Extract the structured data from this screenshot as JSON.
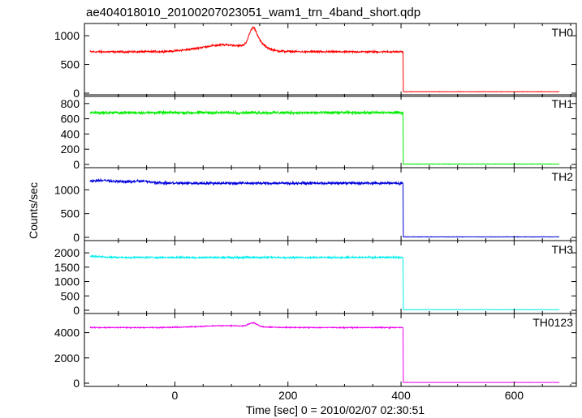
{
  "chart_data": {
    "type": "line",
    "title": "ae404018010_20100207023051_wam1_trn_4band_short.qdp",
    "xlabel": "Time [sec] 0 = 2010/02/07 02:30:51",
    "ylabel": "Counts/sec",
    "xlim": [
      -160,
      710
    ],
    "x_ticks": [
      0,
      200,
      400,
      600
    ],
    "grid": false,
    "legend": "none",
    "panels": [
      {
        "name": "TH0",
        "color": "#ff0000",
        "ylim": [
          0,
          1100
        ],
        "y_ticks": [
          0,
          500,
          1000
        ],
        "pre_level": 720,
        "post_level": 25,
        "noise": 25,
        "drop_at": 404,
        "features": [
          {
            "time": 90,
            "peak": 120,
            "width": 45
          },
          {
            "time": 138,
            "peak": 280,
            "width": 7
          },
          {
            "time": 148,
            "peak": 100,
            "width": 12
          }
        ]
      },
      {
        "name": "TH1",
        "color": "#00ee00",
        "ylim": [
          0,
          830
        ],
        "y_ticks": [
          0,
          200,
          400,
          600,
          800
        ],
        "pre_level": 680,
        "post_level": 5,
        "noise": 28,
        "drop_at": 404,
        "features": []
      },
      {
        "name": "TH2",
        "color": "#0000dd",
        "ylim": [
          0,
          1330
        ],
        "y_ticks": [
          0,
          500,
          1000
        ],
        "pre_level": 1140,
        "post_level": 10,
        "noise": 40,
        "drop_at": 404,
        "features": [
          {
            "time": -130,
            "peak": 60,
            "width": 25
          },
          {
            "time": -60,
            "peak": 40,
            "width": 20
          }
        ]
      },
      {
        "name": "TH3",
        "color": "#00eeee",
        "ylim": [
          0,
          2200
        ],
        "y_ticks": [
          0,
          500,
          1000,
          1500,
          2000
        ],
        "pre_level": 1840,
        "post_level": 20,
        "noise": 45,
        "drop_at": 404,
        "features": [
          {
            "time": -150,
            "peak": 40,
            "width": 20
          }
        ]
      },
      {
        "name": "TH0123",
        "color": "#ee00ee",
        "ylim": [
          0,
          5000
        ],
        "y_ticks": [
          0,
          2000,
          4000
        ],
        "pre_level": 4400,
        "post_level": 60,
        "noise": 60,
        "drop_at": 404,
        "features": [
          {
            "time": 90,
            "peak": 150,
            "width": 45
          },
          {
            "time": 138,
            "peak": 300,
            "width": 7
          }
        ]
      }
    ]
  }
}
